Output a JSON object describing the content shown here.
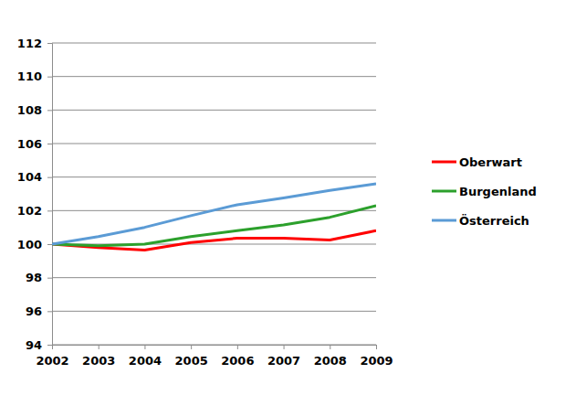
{
  "chart_data": {
    "type": "line",
    "x": [
      2002,
      2003,
      2004,
      2005,
      2006,
      2007,
      2008,
      2009
    ],
    "xlim": [
      2002,
      2009
    ],
    "xticks": [
      2002,
      2003,
      2004,
      2005,
      2006,
      2007,
      2008,
      2009
    ],
    "ylim": [
      94,
      112
    ],
    "yticks": [
      94,
      96,
      98,
      100,
      102,
      104,
      106,
      108,
      110,
      112
    ],
    "grid": true,
    "legend": "right",
    "series": [
      {
        "name": "Oberwart",
        "color": "#ff0000",
        "values": [
          100,
          99.8,
          99.65,
          100.1,
          100.35,
          100.35,
          100.25,
          100.8
        ]
      },
      {
        "name": "Burgenland",
        "color": "#2ca02c",
        "values": [
          100,
          99.9,
          100.0,
          100.45,
          100.8,
          101.15,
          101.6,
          102.3
        ]
      },
      {
        "name": "Österreich",
        "color": "#5b9bd5",
        "values": [
          100,
          100.45,
          101.0,
          101.7,
          102.35,
          102.75,
          103.2,
          103.6
        ]
      }
    ]
  }
}
